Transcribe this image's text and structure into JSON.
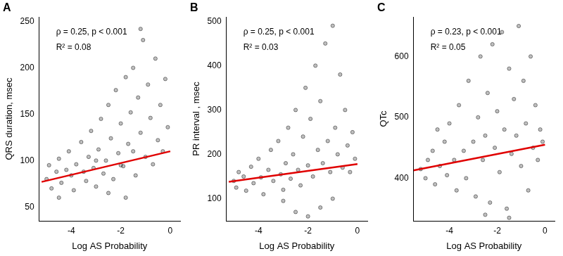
{
  "chart_data": [
    {
      "type": "scatter",
      "panel": "A",
      "annotations": [
        "ρ = 0.25, p < 0.001",
        "R² = 0.08"
      ],
      "x_label": "Log AS Probability",
      "y_label": "QRS duration, msec",
      "xlim": [
        -5.3,
        0.4
      ],
      "ylim": [
        35,
        255
      ],
      "xticks": [
        -4,
        -2,
        0
      ],
      "yticks": [
        50,
        100,
        150,
        200,
        250
      ],
      "grid": false,
      "series": [
        {
          "type": "scatter",
          "color": "#000000",
          "marker": "circle",
          "x": [
            -5.0,
            -4.9,
            -4.8,
            -4.6,
            -4.5,
            -4.4,
            -4.2,
            -4.1,
            -4.0,
            -3.9,
            -3.8,
            -3.6,
            -3.5,
            -3.4,
            -3.3,
            -3.2,
            -3.1,
            -3.0,
            -2.9,
            -2.8,
            -2.7,
            -2.6,
            -2.5,
            -2.4,
            -2.3,
            -2.2,
            -2.1,
            -2.0,
            -1.9,
            -1.8,
            -1.7,
            -1.6,
            -1.5,
            -1.4,
            -1.3,
            -1.2,
            -1.1,
            -1.0,
            -0.9,
            -0.8,
            -0.7,
            -0.6,
            -0.5,
            -0.4,
            -0.3,
            -0.2,
            -0.1,
            -2.0,
            -1.5,
            -3.0,
            -4.5,
            -1.8,
            -1.2,
            -2.5
          ],
          "values": [
            80,
            95,
            70,
            88,
            102,
            76,
            90,
            110,
            84,
            68,
            96,
            120,
            88,
            78,
            104,
            132,
            92,
            72,
            112,
            145,
            86,
            100,
            160,
            124,
            80,
            176,
            108,
            140,
            94,
            190,
            118,
            152,
            200,
            84,
            168,
            130,
            230,
            104,
            182,
            146,
            96,
            210,
            122,
            160,
            110,
            188,
            136,
            95,
            110,
            100,
            60,
            60,
            242,
            65
          ]
        },
        {
          "type": "line",
          "color": "#e00000",
          "x": [
            -5.2,
            0
          ],
          "values": [
            77,
            110
          ]
        }
      ]
    },
    {
      "type": "scatter",
      "panel": "B",
      "annotations": [
        "ρ = 0.25, p < 0.001",
        "R² = 0.03"
      ],
      "x_label": "Log AS Probability",
      "y_label": "PR interval , msec",
      "xlim": [
        -5.3,
        0.4
      ],
      "ylim": [
        50,
        510
      ],
      "xticks": [
        -4,
        -2,
        0
      ],
      "yticks": [
        100,
        200,
        300,
        400,
        500
      ],
      "grid": false,
      "series": [
        {
          "type": "scatter",
          "color": "#000000",
          "marker": "circle",
          "x": [
            -5.0,
            -4.9,
            -4.8,
            -4.6,
            -4.5,
            -4.3,
            -4.2,
            -4.0,
            -3.9,
            -3.8,
            -3.6,
            -3.5,
            -3.4,
            -3.2,
            -3.1,
            -3.0,
            -2.9,
            -2.8,
            -2.7,
            -2.6,
            -2.5,
            -2.4,
            -2.3,
            -2.2,
            -2.1,
            -2.0,
            -1.9,
            -1.8,
            -1.7,
            -1.6,
            -1.5,
            -1.4,
            -1.3,
            -1.2,
            -1.1,
            -1.0,
            -0.9,
            -0.8,
            -0.7,
            -0.6,
            -0.5,
            -0.4,
            -0.3,
            -0.2,
            -0.1,
            -2.0,
            -1.5,
            -3.0,
            -1.0,
            -2.5
          ],
          "values": [
            140,
            125,
            160,
            150,
            118,
            172,
            135,
            190,
            148,
            110,
            165,
            210,
            140,
            230,
            155,
            120,
            180,
            260,
            145,
            200,
            300,
            165,
            130,
            240,
            350,
            175,
            280,
            150,
            400,
            210,
            320,
            180,
            450,
            230,
            160,
            490,
            260,
            200,
            380,
            170,
            300,
            220,
            160,
            250,
            190,
            60,
            80,
            95,
            100,
            70
          ]
        },
        {
          "type": "line",
          "color": "#e00000",
          "x": [
            -5.2,
            0
          ],
          "values": [
            138,
            178
          ]
        }
      ]
    },
    {
      "type": "scatter",
      "panel": "C",
      "annotations": [
        "ρ = 0.23, p < 0.001",
        "R² = 0.05"
      ],
      "x_label": "Log AS Probability",
      "y_label": "QTc",
      "xlim": [
        -5.5,
        0.4
      ],
      "ylim": [
        330,
        665
      ],
      "xticks": [
        -4,
        -2,
        0
      ],
      "yticks": [
        400,
        500,
        600
      ],
      "grid": false,
      "series": [
        {
          "type": "scatter",
          "color": "#000000",
          "marker": "circle",
          "x": [
            -5.2,
            -5.0,
            -4.9,
            -4.7,
            -4.6,
            -4.4,
            -4.2,
            -4.1,
            -4.0,
            -3.8,
            -3.7,
            -3.6,
            -3.4,
            -3.3,
            -3.2,
            -3.0,
            -2.9,
            -2.8,
            -2.7,
            -2.6,
            -2.5,
            -2.4,
            -2.3,
            -2.2,
            -2.1,
            -2.0,
            -1.9,
            -1.8,
            -1.7,
            -1.6,
            -1.5,
            -1.4,
            -1.3,
            -1.2,
            -1.1,
            -1.0,
            -0.9,
            -0.8,
            -0.7,
            -0.6,
            -0.5,
            -0.4,
            -0.3,
            -0.2,
            -0.1,
            -2.5,
            -1.5,
            -4.5
          ],
          "values": [
            415,
            400,
            430,
            445,
            390,
            420,
            460,
            405,
            490,
            430,
            380,
            520,
            445,
            400,
            560,
            460,
            370,
            500,
            600,
            430,
            470,
            540,
            360,
            620,
            450,
            510,
            410,
            640,
            480,
            350,
            580,
            440,
            530,
            470,
            650,
            420,
            560,
            490,
            380,
            600,
            450,
            520,
            430,
            480,
            460,
            340,
            335,
            480
          ]
        },
        {
          "type": "line",
          "color": "#e00000",
          "x": [
            -5.5,
            0
          ],
          "values": [
            413,
            455
          ]
        }
      ]
    }
  ]
}
